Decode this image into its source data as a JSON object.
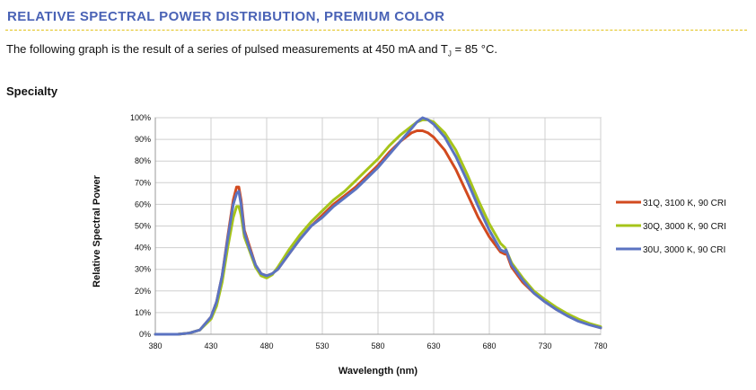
{
  "header": {
    "section_title": "RELATIVE SPECTRAL POWER DISTRIBUTION, PREMIUM COLOR",
    "intro_before": "The following graph is the result of a series of pulsed measurements at 450 mA and T",
    "intro_sub": "J",
    "intro_after": " = 85 °C.",
    "subheading": "Specialty"
  },
  "colors": {
    "title": "#4a63b6",
    "title_rule": "#e3c21a",
    "grid": "#cfcfcf",
    "axis": "#9a9a9a"
  },
  "chart_data": {
    "type": "line",
    "title": "",
    "xlabel": "Wavelength (nm)",
    "ylabel": "Relative Spectral Power",
    "xlim": [
      380,
      780
    ],
    "ylim": [
      0,
      100
    ],
    "x_ticks": [
      380,
      430,
      480,
      530,
      580,
      630,
      680,
      730,
      780
    ],
    "x_tick_labels": [
      "380",
      "430",
      "480",
      "530",
      "580",
      "630",
      "680",
      "730",
      "780"
    ],
    "y_ticks": [
      0,
      10,
      20,
      30,
      40,
      50,
      60,
      70,
      80,
      90,
      100
    ],
    "y_tick_labels": [
      "0%",
      "10%",
      "20%",
      "30%",
      "40%",
      "50%",
      "60%",
      "70%",
      "80%",
      "90%",
      "100%"
    ],
    "grid": true,
    "legend_position": "right",
    "series": [
      {
        "name": "31Q, 3100 K, 90 CRI",
        "color": "#d24a1f",
        "x": [
          380,
          400,
          410,
          420,
          430,
          435,
          440,
          445,
          450,
          453,
          455,
          457,
          460,
          465,
          470,
          475,
          480,
          485,
          490,
          500,
          510,
          520,
          530,
          540,
          550,
          560,
          570,
          580,
          590,
          600,
          610,
          615,
          620,
          625,
          630,
          640,
          650,
          660,
          670,
          680,
          690,
          694,
          695,
          700,
          710,
          720,
          730,
          740,
          750,
          760,
          770,
          780
        ],
        "y": [
          0,
          0,
          0.5,
          2,
          8,
          15,
          27,
          45,
          62,
          68,
          68,
          62,
          48,
          40,
          32,
          28,
          27,
          28,
          30,
          37,
          44,
          50,
          55,
          60,
          64,
          68,
          73,
          78,
          84,
          89,
          93,
          94,
          94,
          93,
          91,
          85,
          76,
          65,
          54,
          45,
          38,
          37,
          38,
          31,
          24,
          19,
          15,
          11.5,
          9,
          6.5,
          4.5,
          3
        ]
      },
      {
        "name": "30Q, 3000 K, 90 CRI",
        "color": "#a6c41a",
        "x": [
          380,
          400,
          410,
          420,
          430,
          435,
          440,
          445,
          450,
          453,
          455,
          457,
          460,
          465,
          470,
          475,
          480,
          485,
          490,
          500,
          510,
          520,
          530,
          540,
          550,
          560,
          570,
          580,
          590,
          600,
          610,
          615,
          620,
          625,
          630,
          640,
          650,
          660,
          670,
          680,
          690,
          694,
          695,
          700,
          710,
          720,
          730,
          740,
          750,
          760,
          770,
          780
        ],
        "y": [
          0,
          0,
          0.5,
          2,
          7,
          13,
          24,
          40,
          54,
          59,
          59,
          55,
          45,
          38,
          31,
          27,
          26,
          27.5,
          31,
          39,
          46,
          52,
          57,
          62,
          66,
          71,
          76,
          81,
          87,
          92,
          96,
          98,
          99,
          99,
          98,
          93,
          85,
          74,
          62,
          51,
          42,
          40,
          39,
          33,
          26,
          20,
          16,
          12.5,
          9.5,
          7,
          5,
          3.5
        ]
      },
      {
        "name": "30U, 3000 K, 90 CRI",
        "color": "#5b73c1",
        "x": [
          380,
          400,
          410,
          420,
          430,
          435,
          440,
          445,
          450,
          453,
          455,
          457,
          460,
          465,
          470,
          475,
          480,
          485,
          490,
          500,
          510,
          520,
          530,
          540,
          550,
          560,
          570,
          580,
          590,
          600,
          610,
          615,
          620,
          625,
          630,
          640,
          650,
          660,
          670,
          680,
          690,
          694,
          695,
          700,
          710,
          720,
          730,
          740,
          750,
          760,
          770,
          780
        ],
        "y": [
          0,
          0,
          0.5,
          2,
          8,
          15,
          27,
          44,
          60,
          65,
          66,
          60,
          47,
          39,
          32,
          28,
          27,
          28,
          30,
          37,
          44,
          50,
          54,
          59,
          63,
          67,
          72,
          77,
          83,
          89,
          95,
          98,
          100,
          99,
          97,
          91,
          82,
          71,
          59,
          48,
          39,
          38,
          39,
          32,
          25,
          19,
          15,
          11.5,
          8.5,
          6,
          4.3,
          3
        ]
      }
    ]
  }
}
